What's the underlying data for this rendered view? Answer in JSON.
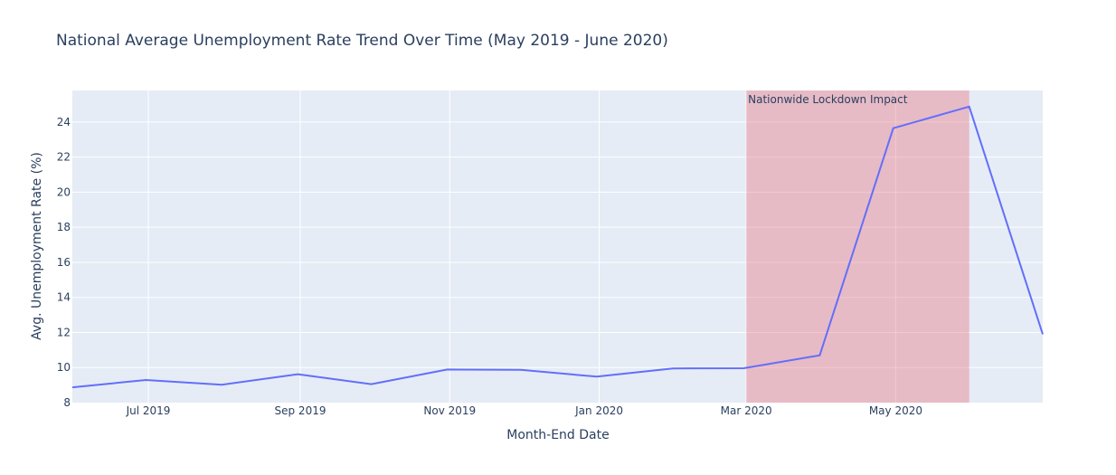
{
  "chart_data": {
    "type": "line",
    "title": "National Average Unemployment Rate Trend Over Time (May 2019 - June 2020)",
    "xlabel": "Month-End Date",
    "ylabel": "Avg. Unemployment Rate (%)",
    "x_tick_labels": [
      "Jul 2019",
      "Sep 2019",
      "Nov 2019",
      "Jan 2020",
      "Mar 2020",
      "May 2020"
    ],
    "y_tick_labels": [
      "8",
      "10",
      "12",
      "14",
      "16",
      "18",
      "20",
      "22",
      "24"
    ],
    "ylim": [
      8,
      25.8
    ],
    "grid": true,
    "x": [
      "2019-05-31",
      "2019-06-30",
      "2019-07-31",
      "2019-08-31",
      "2019-09-30",
      "2019-10-31",
      "2019-11-30",
      "2019-12-31",
      "2020-01-31",
      "2020-02-29",
      "2020-03-31",
      "2020-04-30",
      "2020-05-31",
      "2020-06-30"
    ],
    "series": [
      {
        "values": [
          8.87,
          9.29,
          9.02,
          9.62,
          9.05,
          9.89,
          9.87,
          9.48,
          9.95,
          9.96,
          10.7,
          23.65,
          24.88,
          11.9
        ],
        "color": "#636efa"
      }
    ],
    "highlight": {
      "start": "2020-03-01",
      "end": "2020-05-31",
      "label": "Nationwide Lockdown Impact",
      "color": "#e8747f"
    },
    "colors": {
      "plot_bg": "#e5ecf6",
      "grid": "#ffffff",
      "text": "#2a3f5f"
    }
  }
}
